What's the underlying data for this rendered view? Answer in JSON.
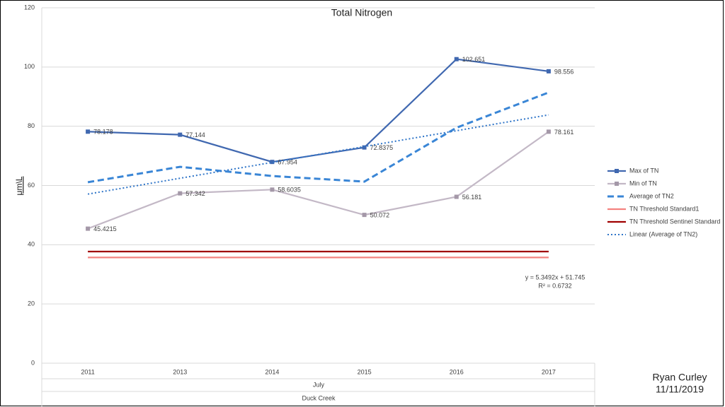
{
  "chart_data": {
    "type": "line",
    "title": "Total Nitrogen",
    "ylabel": "μm\\L",
    "categories": [
      "2011",
      "2013",
      "2014",
      "2015",
      "2016",
      "2017"
    ],
    "x_groups": [
      "July",
      "Duck Creek"
    ],
    "ylim": [
      0,
      120
    ],
    "yticks": [
      0,
      20,
      40,
      60,
      80,
      100,
      120
    ],
    "grid": true,
    "legend": "right",
    "series": [
      {
        "name": "Max of TN",
        "color": "#4068b0",
        "dash": "solid",
        "marker": "square",
        "labels": true,
        "values": [
          78.178,
          77.144,
          67.954,
          72.8375,
          102.651,
          98.556
        ]
      },
      {
        "name": "Min of TN",
        "color": "#c3b8c6",
        "marker_color": "#a498a8",
        "dash": "solid",
        "marker": "square",
        "labels": true,
        "values": [
          45.4215,
          57.342,
          58.6035,
          50.072,
          56.181,
          78.161
        ]
      },
      {
        "name": "Average of TN2",
        "color": "#3a86d6",
        "dash": "dashed",
        "marker": "none",
        "labels": false,
        "values": [
          61.1,
          66.3,
          63.2,
          61.3,
          79.5,
          91.4
        ]
      },
      {
        "name": "TN Threshold Standard1",
        "color": "#f4827f",
        "dash": "solid",
        "marker": "none",
        "labels": false,
        "values": [
          35.7,
          35.7,
          35.7,
          35.7,
          35.7,
          35.7
        ]
      },
      {
        "name": "TN Threshold Sentinel Standard",
        "color": "#a00000",
        "dash": "solid",
        "marker": "none",
        "labels": false,
        "values": [
          37.7,
          37.7,
          37.7,
          37.7,
          37.7,
          37.7
        ]
      },
      {
        "name": "Linear (Average of TN2)",
        "color": "#2f75c8",
        "dash": "dotted",
        "marker": "none",
        "labels": false,
        "values": [
          57.09,
          62.44,
          67.79,
          73.14,
          78.49,
          83.84
        ]
      }
    ],
    "annotations": [
      "y = 5.3492x + 51.745",
      "R² = 0.6732"
    ],
    "signature": [
      "Ryan Curley",
      "11/11/2019"
    ]
  }
}
